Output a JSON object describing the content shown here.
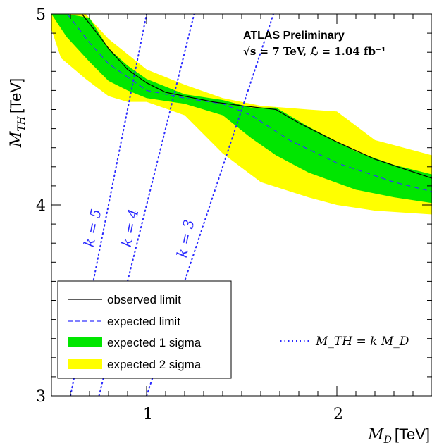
{
  "chart_data": {
    "type": "area",
    "title": "",
    "xlabel": "M_D [TeV]",
    "ylabel": "M_TH [TeV]",
    "xlim": [
      0.5,
      2.5
    ],
    "ylim": [
      3.0,
      5.0
    ],
    "x_ticks": [
      1,
      2
    ],
    "x_tick_labels": [
      "1",
      "2"
    ],
    "y_ticks": [
      3,
      4,
      5
    ],
    "y_tick_labels": [
      "3",
      "4",
      "5"
    ],
    "grid": false,
    "legend_position": "bottom-left",
    "annotations": {
      "experiment": "ATLAS Preliminary",
      "energy_lumi": "√s = 7 TeV, ℒ = 1.04 fb⁻¹",
      "k_line_legend": "M_TH = k M_D"
    },
    "colors": {
      "observed": "#000000",
      "expected": "#3333ff",
      "band_1sigma": "#00e600",
      "band_2sigma": "#ffff00",
      "k_lines": "#2a2aff"
    },
    "series": [
      {
        "name": "observed limit",
        "style": "solid",
        "x": [
          0.5,
          0.66,
          0.74,
          0.8,
          0.9,
          1.0,
          1.1,
          1.2,
          1.35,
          1.5,
          1.68,
          1.8,
          2.0,
          2.2,
          2.5
        ],
        "y": [
          5.08,
          5.0,
          4.9,
          4.82,
          4.71,
          4.64,
          4.59,
          4.57,
          4.54,
          4.52,
          4.5,
          4.43,
          4.33,
          4.24,
          4.14
        ]
      },
      {
        "name": "expected limit",
        "style": "dashed",
        "x": [
          0.5,
          0.6,
          0.7,
          0.8,
          0.9,
          1.0,
          1.2,
          1.4,
          1.55,
          1.75,
          2.0,
          2.3,
          2.5
        ],
        "y": [
          5.1,
          4.98,
          4.85,
          4.74,
          4.67,
          4.6,
          4.56,
          4.53,
          4.47,
          4.34,
          4.22,
          4.12,
          4.07
        ]
      }
    ],
    "bands": [
      {
        "name": "expected 1 sigma",
        "x": [
          0.5,
          0.58,
          0.7,
          0.8,
          0.9,
          1.0,
          1.2,
          1.4,
          1.55,
          1.68,
          1.85,
          2.1,
          2.3,
          2.5
        ],
        "upper": [
          5.2,
          5.0,
          4.98,
          4.82,
          4.73,
          4.66,
          4.58,
          4.55,
          4.51,
          4.51,
          4.41,
          4.28,
          4.21,
          4.16
        ],
        "lower": [
          5.0,
          4.88,
          4.75,
          4.65,
          4.6,
          4.56,
          4.53,
          4.47,
          4.35,
          4.26,
          4.17,
          4.08,
          4.04,
          4.01
        ]
      },
      {
        "name": "expected 2 sigma",
        "x": [
          0.5,
          0.55,
          0.68,
          0.8,
          0.9,
          1.0,
          1.2,
          1.4,
          1.6,
          1.85,
          2.0,
          2.2,
          2.5
        ],
        "upper": [
          5.2,
          5.2,
          5.0,
          4.87,
          4.79,
          4.71,
          4.63,
          4.56,
          4.52,
          4.5,
          4.49,
          4.34,
          4.26
        ],
        "lower": [
          4.92,
          4.77,
          4.66,
          4.57,
          4.54,
          4.54,
          4.47,
          4.27,
          4.12,
          4.04,
          4.0,
          3.97,
          3.95
        ]
      }
    ],
    "k_lines": [
      {
        "name": "k = 5",
        "k": 5
      },
      {
        "name": "k = 4",
        "k": 4
      },
      {
        "name": "k = 3",
        "k": 3
      }
    ],
    "legend": [
      {
        "label": "observed limit",
        "symbol": "solid-line"
      },
      {
        "label": "expected limit",
        "symbol": "dashed-line"
      },
      {
        "label": "expected 1 sigma",
        "symbol": "green-box"
      },
      {
        "label": "expected 2 sigma",
        "symbol": "yellow-box"
      }
    ],
    "k_labels": [
      "k = 5",
      "k = 4",
      "k = 3"
    ]
  }
}
